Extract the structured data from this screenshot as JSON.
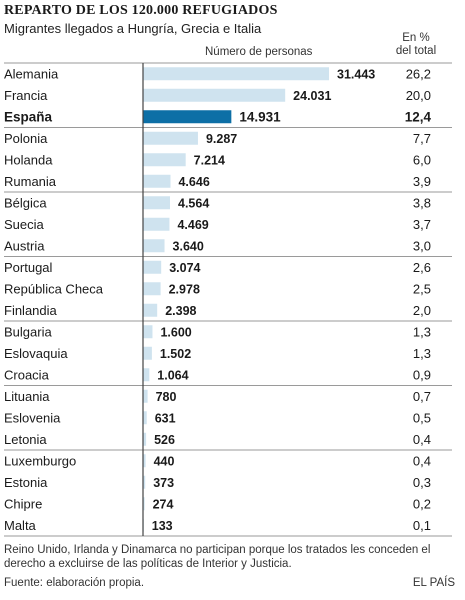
{
  "header": {
    "title": "REPARTO DE LOS 120.000 REFUGIADOS",
    "subtitle": "Migrantes llegados a Hungría, Grecia e Italia",
    "col_number": "Número de personas",
    "col_pct_line1": "En %",
    "col_pct_line2": "del total"
  },
  "colors": {
    "bar": "#cfe3ef",
    "bar_highlight": "#0d6fa6",
    "separator": "#9a9a9a",
    "axis": "#444444"
  },
  "chart_data": {
    "type": "bar",
    "orientation": "horizontal",
    "highlight": "España",
    "categories": [
      "Alemania",
      "Francia",
      "España",
      "Polonia",
      "Holanda",
      "Rumania",
      "Bélgica",
      "Suecia",
      "Austria",
      "Portugal",
      "República Checa",
      "Finlandia",
      "Bulgaria",
      "Eslovaquia",
      "Croacia",
      "Lituania",
      "Eslovenia",
      "Letonia",
      "Luxemburgo",
      "Estonia",
      "Chipre",
      "Malta"
    ],
    "values": [
      31443,
      24031,
      14931,
      9287,
      7214,
      4646,
      4564,
      4469,
      3640,
      3074,
      2978,
      2398,
      1600,
      1502,
      1064,
      780,
      631,
      526,
      440,
      373,
      274,
      133
    ],
    "value_labels": [
      "31.443",
      "24.031",
      "14.931",
      "9.287",
      "7.214",
      "4.646",
      "4.564",
      "4.469",
      "3.640",
      "3.074",
      "2.978",
      "2.398",
      "1.600",
      "1.502",
      "1.064",
      "780",
      "631",
      "526",
      "440",
      "373",
      "274",
      "133"
    ],
    "percent_labels": [
      "26,2",
      "20,0",
      "12,4",
      "7,7",
      "6,0",
      "3,9",
      "3,8",
      "3,7",
      "3,0",
      "2,6",
      "2,5",
      "2,0",
      "1,3",
      "1,3",
      "0,9",
      "0,7",
      "0,5",
      "0,4",
      "0,4",
      "0,3",
      "0,2",
      "0,1"
    ],
    "groups_after_index": [
      2,
      5,
      8,
      11,
      14,
      17
    ],
    "xlim": [
      0,
      36000
    ]
  },
  "footer": {
    "note": "Reino Unido, Irlanda y Dinamarca no participan porque los tratados les conceden el derecho a excluirse de las políticas de Interior y Justicia.",
    "source": "Fuente: elaboración propia.",
    "brand": "EL PAÍS"
  }
}
